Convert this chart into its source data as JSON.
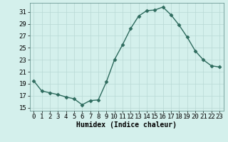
{
  "x": [
    0,
    1,
    2,
    3,
    4,
    5,
    6,
    7,
    8,
    9,
    10,
    11,
    12,
    13,
    14,
    15,
    16,
    17,
    18,
    19,
    20,
    21,
    22,
    23
  ],
  "y": [
    19.5,
    17.8,
    17.5,
    17.2,
    16.8,
    16.5,
    15.5,
    16.2,
    16.3,
    19.3,
    23.0,
    25.5,
    28.2,
    30.3,
    31.2,
    31.3,
    31.8,
    30.5,
    28.8,
    26.8,
    24.5,
    23.0,
    22.0,
    21.8
  ],
  "line_color": "#2e6b5e",
  "marker": "D",
  "marker_size": 2.5,
  "bg_color": "#d4f0ec",
  "grid_color": "#b8d8d4",
  "xlabel": "Humidex (Indice chaleur)",
  "xlim": [
    -0.5,
    23.5
  ],
  "ylim": [
    14.5,
    32.5
  ],
  "yticks": [
    15,
    17,
    19,
    21,
    23,
    25,
    27,
    29,
    31
  ],
  "xticks": [
    0,
    1,
    2,
    3,
    4,
    5,
    6,
    7,
    8,
    9,
    10,
    11,
    12,
    13,
    14,
    15,
    16,
    17,
    18,
    19,
    20,
    21,
    22,
    23
  ],
  "xlabel_fontsize": 7,
  "tick_fontsize": 6.5,
  "line_width": 1.0
}
